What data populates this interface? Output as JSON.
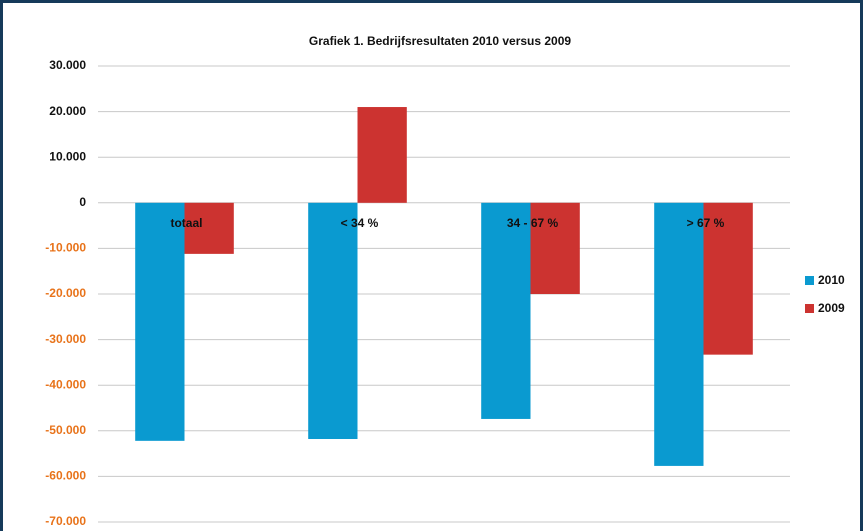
{
  "chart_data": {
    "type": "bar",
    "title": "Grafiek 1. Bedrijfsresultaten 2010 versus 2009",
    "categories": [
      "totaal",
      "< 34 %",
      "34 - 67 %",
      "> 67 %"
    ],
    "series": [
      {
        "name": "2010",
        "color": "#0a9ad0",
        "values": [
          -52200,
          -51800,
          -47400,
          -57700
        ]
      },
      {
        "name": "2009",
        "color": "#cc3330",
        "values": [
          -11200,
          21000,
          -20000,
          -33300
        ]
      }
    ],
    "ylim": [
      -70000,
      30000
    ],
    "yticks": [
      {
        "value": 30000,
        "label": "30.000"
      },
      {
        "value": 20000,
        "label": "20.000"
      },
      {
        "value": 10000,
        "label": "10.000"
      },
      0,
      {
        "value": -10000,
        "label": "-10.000"
      },
      {
        "value": -20000,
        "label": "-20.000"
      },
      {
        "value": -30000,
        "label": "-30.000"
      },
      {
        "value": -40000,
        "label": "-40.000"
      },
      {
        "value": -50000,
        "label": "-50.000"
      },
      {
        "value": -60000,
        "label": "-60.000"
      },
      {
        "value": -70000,
        "label": "-70.000"
      }
    ],
    "grid": true,
    "legend": "right"
  }
}
